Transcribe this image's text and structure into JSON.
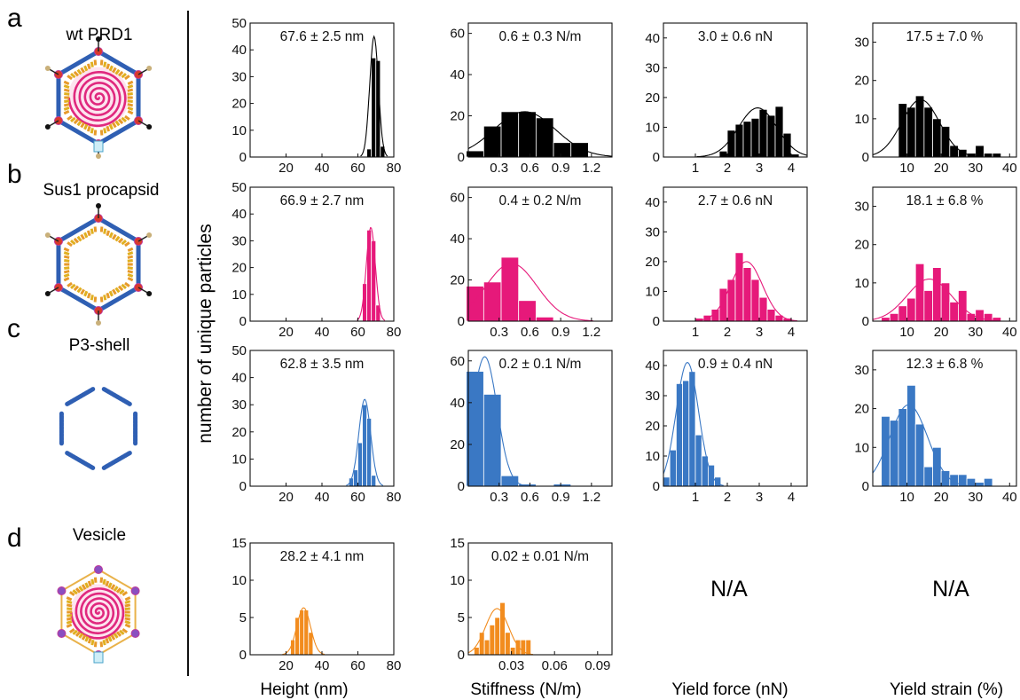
{
  "figure": {
    "row_letters": [
      "a",
      "b",
      "c",
      "d"
    ],
    "row_names": [
      "wt PRD1",
      "Sus1 procapsid",
      "P3-shell",
      "Vesicle"
    ],
    "y_axis_label": "number of unique particles",
    "column_labels": [
      "Height (nm)",
      "Stiffness (N/m)",
      "Yield force (nN)",
      "Yield strain (%)"
    ],
    "na_label": "N/A",
    "colors": {
      "wt": "#000000",
      "sus1": "#e6197a",
      "p3": "#3a78c4",
      "vesicle": "#f28c1e",
      "capsid_blue": "#2f5fb3",
      "membrane_pink": "#e0287e",
      "orange_stripe": "#e79a2a",
      "vertex_red": "#d83a2b",
      "vertex_purple": "#8a4fc0"
    }
  },
  "chart_data": [
    {
      "type": "bar",
      "row": 0,
      "col": 0,
      "color": "#000000",
      "title": "67.6 ± 2.5 nm",
      "xlim": [
        0,
        80
      ],
      "ylim": [
        0,
        50
      ],
      "xticks": [
        20,
        40,
        60,
        80
      ],
      "yticks": [
        0,
        10,
        20,
        30,
        40,
        50
      ],
      "bin_width": 2.5,
      "x": [
        66.25,
        68.75,
        71.25,
        73.75
      ],
      "values": [
        3,
        37,
        36,
        4
      ],
      "fit": {
        "mean": 69,
        "sd": 2.4,
        "peak": 45
      }
    },
    {
      "type": "bar",
      "row": 0,
      "col": 1,
      "color": "#000000",
      "title": "0.6 ± 0.3 N/m",
      "xlim": [
        0,
        1.4
      ],
      "ylim": [
        0,
        65
      ],
      "xticks": [
        0.3,
        0.6,
        0.9,
        1.2
      ],
      "xtick_labels": [
        "0.3",
        "0.6",
        "0.9",
        "1.2"
      ],
      "yticks": [
        0,
        20,
        40,
        60
      ],
      "bin_width": 0.17,
      "x": [
        0.065,
        0.235,
        0.405,
        0.575,
        0.745,
        0.915,
        1.085
      ],
      "values": [
        3,
        15,
        22,
        22,
        19,
        7,
        7
      ],
      "fit": {
        "mean": 0.55,
        "sd": 0.3,
        "peak": 22
      }
    },
    {
      "type": "bar",
      "row": 0,
      "col": 2,
      "color": "#000000",
      "title": "3.0 ± 0.6 nN",
      "xlim": [
        0,
        4.5
      ],
      "ylim": [
        0,
        45
      ],
      "xticks": [
        1,
        2,
        3,
        4
      ],
      "yticks": [
        0,
        10,
        20,
        30,
        40
      ],
      "bin_width": 0.25,
      "x": [
        1.875,
        2.125,
        2.375,
        2.625,
        2.875,
        3.125,
        3.375,
        3.625,
        3.875,
        4.125
      ],
      "values": [
        2,
        9,
        11,
        12,
        13,
        16,
        14,
        17,
        8,
        1
      ],
      "fit": {
        "mean": 2.95,
        "sd": 0.6,
        "peak": 16.5
      }
    },
    {
      "type": "bar",
      "row": 0,
      "col": 3,
      "color": "#000000",
      "title": "17.5 ± 7.0 %",
      "xlim": [
        0,
        42
      ],
      "ylim": [
        0,
        35
      ],
      "xticks": [
        10,
        20,
        30,
        40
      ],
      "yticks": [
        0,
        10,
        20,
        30
      ],
      "bin_width": 2.5,
      "x": [
        8.75,
        11.25,
        13.75,
        16.25,
        18.75,
        21.25,
        23.75,
        26.25,
        28.75,
        31.25,
        33.75,
        36.25
      ],
      "values": [
        14,
        13,
        16,
        13,
        10,
        8,
        3,
        2,
        1,
        3,
        1,
        1
      ],
      "fit": {
        "mean": 14,
        "sd": 5.5,
        "peak": 15
      }
    },
    {
      "type": "bar",
      "row": 1,
      "col": 0,
      "color": "#e6197a",
      "title": "66.9 ± 2.7 nm",
      "xlim": [
        0,
        80
      ],
      "ylim": [
        0,
        50
      ],
      "xticks": [
        20,
        40,
        60,
        80
      ],
      "yticks": [
        0,
        10,
        20,
        30,
        40,
        50
      ],
      "bin_width": 2.5,
      "x": [
        63.75,
        66.25,
        68.75,
        71.25
      ],
      "values": [
        14,
        34,
        30,
        6
      ],
      "fit": {
        "mean": 67.2,
        "sd": 2.5,
        "peak": 35
      }
    },
    {
      "type": "bar",
      "row": 1,
      "col": 1,
      "color": "#e6197a",
      "title": "0.4 ± 0.2 N/m",
      "xlim": [
        0,
        1.4
      ],
      "ylim": [
        0,
        65
      ],
      "xticks": [
        0.3,
        0.6,
        0.9,
        1.2
      ],
      "xtick_labels": [
        "0.3",
        "0.6",
        "0.9",
        "1.2"
      ],
      "yticks": [
        0,
        20,
        40,
        60
      ],
      "bin_width": 0.17,
      "x": [
        0.065,
        0.235,
        0.405,
        0.575,
        0.745
      ],
      "values": [
        17,
        19,
        31,
        10,
        2
      ],
      "fit": {
        "mean": 0.42,
        "sd": 0.25,
        "peak": 28
      }
    },
    {
      "type": "bar",
      "row": 1,
      "col": 2,
      "color": "#e6197a",
      "title": "2.7 ± 0.6 nN",
      "xlim": [
        0,
        4.5
      ],
      "ylim": [
        0,
        45
      ],
      "xticks": [
        1,
        2,
        3,
        4
      ],
      "yticks": [
        0,
        10,
        20,
        30,
        40
      ],
      "bin_width": 0.25,
      "x": [
        1.125,
        1.375,
        1.625,
        1.875,
        2.125,
        2.375,
        2.625,
        2.875,
        3.125,
        3.375,
        3.625,
        3.875
      ],
      "values": [
        1,
        2,
        4,
        11,
        14,
        23,
        18,
        14,
        8,
        4,
        2,
        1
      ],
      "fit": {
        "mean": 2.6,
        "sd": 0.5,
        "peak": 20
      }
    },
    {
      "type": "bar",
      "row": 1,
      "col": 3,
      "color": "#e6197a",
      "title": "18.1 ± 6.8 %",
      "xlim": [
        0,
        42
      ],
      "ylim": [
        0,
        35
      ],
      "xticks": [
        10,
        20,
        30,
        40
      ],
      "yticks": [
        0,
        10,
        20,
        30
      ],
      "bin_width": 2.5,
      "x": [
        3.75,
        6.25,
        8.75,
        11.25,
        13.75,
        16.25,
        18.75,
        21.25,
        23.75,
        26.25,
        28.75,
        31.25,
        33.75,
        36.25
      ],
      "values": [
        1,
        2,
        4,
        6,
        15,
        8,
        14,
        10,
        5,
        8,
        2,
        3,
        2,
        1
      ],
      "fit": {
        "mean": 16.5,
        "sd": 6.5,
        "peak": 11
      }
    },
    {
      "type": "bar",
      "row": 2,
      "col": 0,
      "color": "#3a78c4",
      "title": "62.8 ± 3.5 nm",
      "xlim": [
        0,
        80
      ],
      "ylim": [
        0,
        50
      ],
      "xticks": [
        20,
        40,
        60,
        80
      ],
      "yticks": [
        0,
        10,
        20,
        30,
        40,
        50
      ],
      "bin_width": 2.5,
      "x": [
        56.25,
        58.75,
        61.25,
        63.75,
        66.25,
        68.75
      ],
      "values": [
        3,
        6,
        16,
        30,
        25,
        4
      ],
      "fit": {
        "mean": 63.8,
        "sd": 3.3,
        "peak": 32
      }
    },
    {
      "type": "bar",
      "row": 2,
      "col": 1,
      "color": "#3a78c4",
      "title": "0.2 ± 0.1 N/m",
      "xlim": [
        0,
        1.4
      ],
      "ylim": [
        0,
        65
      ],
      "xticks": [
        0.3,
        0.6,
        0.9,
        1.2
      ],
      "xtick_labels": [
        "0.3",
        "0.6",
        "0.9",
        "1.2"
      ],
      "yticks": [
        0,
        20,
        40,
        60
      ],
      "bin_width": 0.17,
      "x": [
        0.065,
        0.235,
        0.405,
        0.575,
        0.745,
        0.915
      ],
      "values": [
        55,
        44,
        5,
        1,
        0,
        1
      ],
      "fit": {
        "mean": 0.16,
        "sd": 0.12,
        "peak": 62
      }
    },
    {
      "type": "bar",
      "row": 2,
      "col": 2,
      "color": "#3a78c4",
      "title": "0.9 ± 0.4 nN",
      "xlim": [
        0,
        4.5
      ],
      "ylim": [
        0,
        45
      ],
      "xticks": [
        1,
        2,
        3,
        4
      ],
      "yticks": [
        0,
        10,
        20,
        30,
        40
      ],
      "bin_width": 0.2,
      "x": [
        0.1,
        0.3,
        0.5,
        0.7,
        0.9,
        1.1,
        1.3,
        1.5,
        1.7
      ],
      "values": [
        3,
        12,
        34,
        35,
        38,
        17,
        10,
        7,
        3
      ],
      "fit": {
        "mean": 0.75,
        "sd": 0.35,
        "peak": 41
      }
    },
    {
      "type": "bar",
      "row": 2,
      "col": 3,
      "color": "#3a78c4",
      "title": "12.3 ± 6.8 %",
      "xlim": [
        0,
        42
      ],
      "ylim": [
        0,
        35
      ],
      "xticks": [
        10,
        20,
        30,
        40
      ],
      "yticks": [
        0,
        10,
        20,
        30
      ],
      "bin_width": 2.5,
      "x": [
        3.75,
        6.25,
        8.75,
        11.25,
        13.75,
        16.25,
        18.75,
        21.25,
        23.75,
        26.25,
        28.75,
        31.25,
        33.75
      ],
      "values": [
        18,
        17,
        20,
        26,
        16,
        5,
        10,
        4,
        3,
        3,
        2,
        1,
        2
      ],
      "fit": {
        "mean": 10.5,
        "sd": 5.5,
        "peak": 21
      }
    },
    {
      "type": "bar",
      "row": 3,
      "col": 0,
      "color": "#f28c1e",
      "title": "28.2 ± 4.1 nm",
      "xlim": [
        0,
        80
      ],
      "ylim": [
        0,
        15
      ],
      "xticks": [
        20,
        40,
        60,
        80
      ],
      "yticks": [
        0,
        5,
        10,
        15
      ],
      "bin_width": 2.5,
      "x": [
        23.75,
        26.25,
        28.75,
        31.25,
        33.75
      ],
      "values": [
        2,
        5,
        6,
        6,
        3
      ],
      "fit": {
        "mean": 29.8,
        "sd": 3.8,
        "peak": 6.3
      }
    },
    {
      "type": "bar",
      "row": 3,
      "col": 1,
      "color": "#f28c1e",
      "title": "0.02 ± 0.01 N/m",
      "xlim": [
        0,
        0.1
      ],
      "ylim": [
        0,
        15
      ],
      "xticks": [
        0.03,
        0.06,
        0.09
      ],
      "xtick_labels": [
        "0.03",
        "0.06",
        "0.09"
      ],
      "yticks": [
        0,
        5,
        10,
        15
      ],
      "bin_width": 0.0036,
      "x": [
        0.0058,
        0.0094,
        0.013,
        0.0166,
        0.0202,
        0.0238,
        0.0274,
        0.031,
        0.0346,
        0.0382,
        0.0418
      ],
      "values": [
        1,
        3,
        2,
        4,
        5,
        7,
        3,
        1,
        2,
        2,
        2
      ],
      "fit": {
        "mean": 0.02,
        "sd": 0.008,
        "peak": 6.2
      }
    }
  ]
}
